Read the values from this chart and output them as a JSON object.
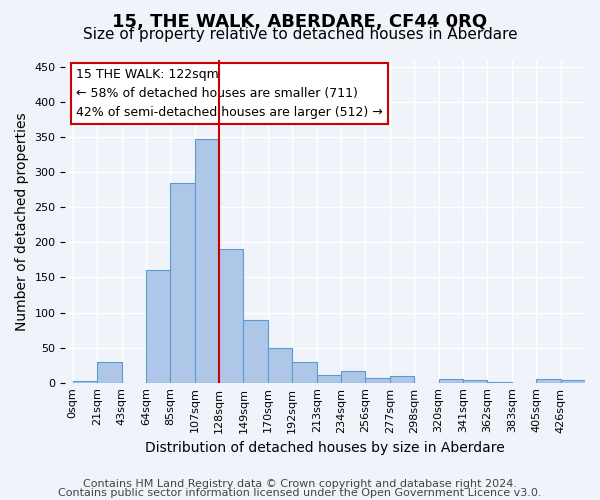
{
  "title": "15, THE WALK, ABERDARE, CF44 0RQ",
  "subtitle": "Size of property relative to detached houses in Aberdare",
  "xlabel": "Distribution of detached houses by size in Aberdare",
  "ylabel": "Number of detached properties",
  "bar_labels": [
    "0sqm",
    "21sqm",
    "43sqm",
    "64sqm",
    "85sqm",
    "107sqm",
    "128sqm",
    "149sqm",
    "170sqm",
    "192sqm",
    "213sqm",
    "234sqm",
    "256sqm",
    "277sqm",
    "298sqm",
    "320sqm",
    "341sqm",
    "362sqm",
    "383sqm",
    "405sqm",
    "426sqm"
  ],
  "bar_values": [
    3,
    30,
    0,
    160,
    285,
    348,
    190,
    90,
    50,
    30,
    11,
    16,
    6,
    10,
    0,
    5,
    4,
    1,
    0,
    5,
    4
  ],
  "bar_color": "#aec6e8",
  "bar_edge_color": "#5b9bd5",
  "vline_label": "128sqm",
  "vline_color": "#cc0000",
  "annotation_text": "15 THE WALK: 122sqm\n← 58% of detached houses are smaller (711)\n42% of semi-detached houses are larger (512) →",
  "annotation_box_color": "#ffffff",
  "annotation_box_edge": "#cc0000",
  "ylim": [
    0,
    460
  ],
  "yticks": [
    0,
    50,
    100,
    150,
    200,
    250,
    300,
    350,
    400,
    450
  ],
  "footer_line1": "Contains HM Land Registry data © Crown copyright and database right 2024.",
  "footer_line2": "Contains public sector information licensed under the Open Government Licence v3.0.",
  "background_color": "#f0f4fa",
  "grid_color": "#ffffff",
  "title_fontsize": 13,
  "subtitle_fontsize": 11,
  "axis_label_fontsize": 10,
  "tick_fontsize": 8,
  "annotation_fontsize": 9,
  "footer_fontsize": 8
}
